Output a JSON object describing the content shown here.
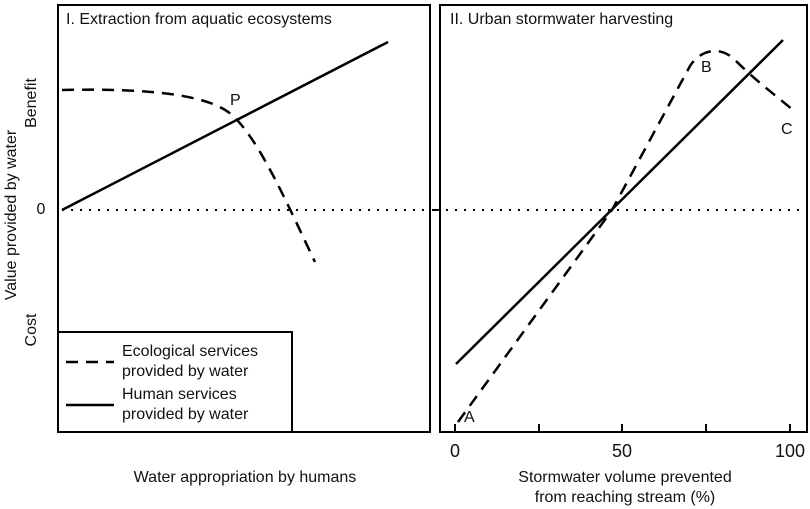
{
  "y_axis": {
    "title": "Value provided by water",
    "benefit": "Benefit",
    "zero": "0",
    "cost": "Cost"
  },
  "panels": [
    {
      "title": "I. Extraction from aquatic ecosystems",
      "x_label": "Water appropriation by humans",
      "point_labels": [
        "P"
      ]
    },
    {
      "title": "II. Urban stormwater harvesting",
      "x_label_lines": [
        "Stormwater volume prevented",
        "from reaching stream (%)"
      ],
      "x_ticks": [
        "0",
        "50",
        "100"
      ],
      "point_labels": [
        "A",
        "B",
        "C"
      ]
    }
  ],
  "legend": [
    {
      "lines": [
        "Ecological services",
        "provided by water"
      ]
    },
    {
      "lines": [
        "Human services",
        "provided by water"
      ]
    }
  ]
}
